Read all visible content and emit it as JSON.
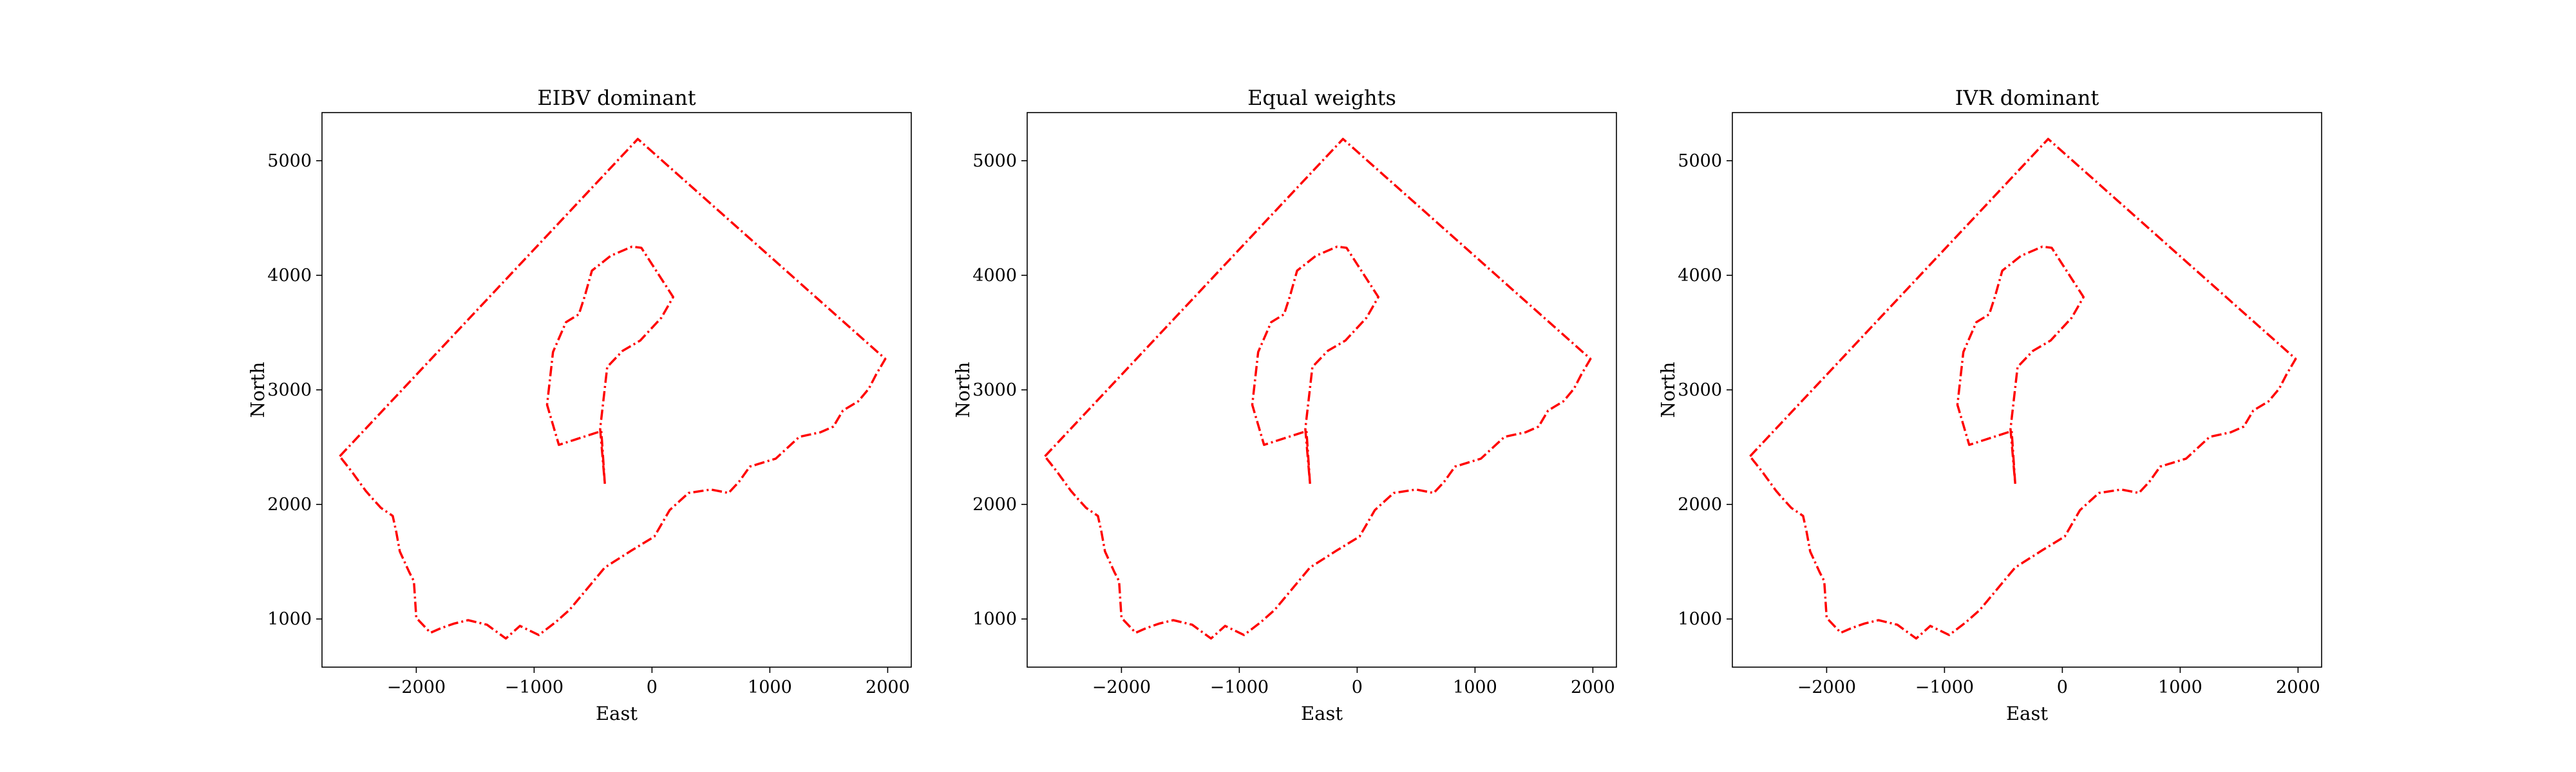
{
  "chart_data": [
    {
      "type": "line",
      "title": "EIBV dominant",
      "xlabel": "East",
      "ylabel": "North",
      "xlim": [
        -2800,
        2200
      ],
      "ylim": [
        580,
        5420
      ],
      "xticks": [
        -2000,
        -1000,
        0,
        1000,
        2000
      ],
      "xtick_labels": [
        "−2000",
        "−1000",
        "0",
        "1000",
        "2000"
      ],
      "yticks": [
        1000,
        2000,
        3000,
        4000,
        5000
      ],
      "ytick_labels": [
        "1000",
        "2000",
        "3000",
        "4000",
        "5000"
      ],
      "grid": false,
      "series_color": "#ff0000",
      "series": [
        {
          "x": [
            -2650,
            -120,
            1980,
            1900,
            1840,
            1750,
            1620,
            1540,
            1430,
            1250,
            1050,
            830,
            740,
            650,
            500,
            310,
            150,
            20,
            -170,
            -400,
            -700,
            -820,
            -960,
            -1120,
            -1240,
            -1400,
            -1560,
            -1680,
            -1790,
            -1880,
            -2000,
            -2020,
            -2060,
            -2140,
            -2170,
            -2200,
            -2300,
            -2380,
            -2430,
            -2550,
            -2650
          ],
          "y": [
            2420,
            5190,
            3270,
            3130,
            3010,
            2900,
            2820,
            2680,
            2630,
            2590,
            2400,
            2330,
            2200,
            2100,
            2130,
            2100,
            1950,
            1720,
            1600,
            1450,
            1080,
            970,
            860,
            940,
            830,
            950,
            990,
            960,
            920,
            880,
            1010,
            1330,
            1410,
            1590,
            1760,
            1900,
            1970,
            2060,
            2120,
            2290,
            2420
          ]
        },
        {
          "x": [
            -400,
            -430,
            -790,
            -890,
            -840,
            -730,
            -620,
            -570,
            -510,
            -350,
            -170,
            -90,
            180,
            80,
            -100,
            -250,
            -380,
            -440,
            -400
          ],
          "y": [
            2180,
            2640,
            2520,
            2870,
            3330,
            3590,
            3660,
            3820,
            4040,
            4170,
            4250,
            4240,
            3810,
            3630,
            3430,
            3340,
            3200,
            2660,
            2180
          ]
        }
      ]
    },
    {
      "type": "line",
      "title": "Equal weights",
      "xlabel": "East",
      "ylabel": "North",
      "xlim": [
        -2800,
        2200
      ],
      "ylim": [
        580,
        5420
      ],
      "xticks": [
        -2000,
        -1000,
        0,
        1000,
        2000
      ],
      "xtick_labels": [
        "−2000",
        "−1000",
        "0",
        "1000",
        "2000"
      ],
      "yticks": [
        1000,
        2000,
        3000,
        4000,
        5000
      ],
      "ytick_labels": [
        "1000",
        "2000",
        "3000",
        "4000",
        "5000"
      ],
      "grid": false,
      "series_color": "#ff0000",
      "series": [
        {
          "x": [
            -2650,
            -120,
            1980,
            1900,
            1840,
            1750,
            1620,
            1540,
            1430,
            1250,
            1050,
            830,
            740,
            650,
            500,
            310,
            150,
            20,
            -170,
            -400,
            -700,
            -820,
            -960,
            -1120,
            -1240,
            -1400,
            -1560,
            -1680,
            -1790,
            -1880,
            -2000,
            -2020,
            -2060,
            -2140,
            -2170,
            -2200,
            -2300,
            -2380,
            -2430,
            -2550,
            -2650
          ],
          "y": [
            2420,
            5190,
            3270,
            3130,
            3010,
            2900,
            2820,
            2680,
            2630,
            2590,
            2400,
            2330,
            2200,
            2100,
            2130,
            2100,
            1950,
            1720,
            1600,
            1450,
            1080,
            970,
            860,
            940,
            830,
            950,
            990,
            960,
            920,
            880,
            1010,
            1330,
            1410,
            1590,
            1760,
            1900,
            1970,
            2060,
            2120,
            2290,
            2420
          ]
        },
        {
          "x": [
            -400,
            -430,
            -790,
            -890,
            -840,
            -730,
            -620,
            -570,
            -510,
            -350,
            -170,
            -90,
            180,
            80,
            -100,
            -250,
            -380,
            -440,
            -400
          ],
          "y": [
            2180,
            2640,
            2520,
            2870,
            3330,
            3590,
            3660,
            3820,
            4040,
            4170,
            4250,
            4240,
            3810,
            3630,
            3430,
            3340,
            3200,
            2660,
            2180
          ]
        }
      ]
    },
    {
      "type": "line",
      "title": "IVR dominant",
      "xlabel": "East",
      "ylabel": "North",
      "xlim": [
        -2800,
        2200
      ],
      "ylim": [
        580,
        5420
      ],
      "xticks": [
        -2000,
        -1000,
        0,
        1000,
        2000
      ],
      "xtick_labels": [
        "−2000",
        "−1000",
        "0",
        "1000",
        "2000"
      ],
      "yticks": [
        1000,
        2000,
        3000,
        4000,
        5000
      ],
      "ytick_labels": [
        "1000",
        "2000",
        "3000",
        "4000",
        "5000"
      ],
      "grid": false,
      "series_color": "#ff0000",
      "series": [
        {
          "x": [
            -2650,
            -120,
            1980,
            1900,
            1840,
            1750,
            1620,
            1540,
            1430,
            1250,
            1050,
            830,
            740,
            650,
            500,
            310,
            150,
            20,
            -170,
            -400,
            -700,
            -820,
            -960,
            -1120,
            -1240,
            -1400,
            -1560,
            -1680,
            -1790,
            -1880,
            -2000,
            -2020,
            -2060,
            -2140,
            -2170,
            -2200,
            -2300,
            -2380,
            -2430,
            -2550,
            -2650
          ],
          "y": [
            2420,
            5190,
            3270,
            3130,
            3010,
            2900,
            2820,
            2680,
            2630,
            2590,
            2400,
            2330,
            2200,
            2100,
            2130,
            2100,
            1950,
            1720,
            1600,
            1450,
            1080,
            970,
            860,
            940,
            830,
            950,
            990,
            960,
            920,
            880,
            1010,
            1330,
            1410,
            1590,
            1760,
            1900,
            1970,
            2060,
            2120,
            2290,
            2420
          ]
        },
        {
          "x": [
            -400,
            -430,
            -790,
            -890,
            -840,
            -730,
            -620,
            -570,
            -510,
            -350,
            -170,
            -90,
            180,
            80,
            -100,
            -250,
            -380,
            -440,
            -400
          ],
          "y": [
            2180,
            2640,
            2520,
            2870,
            3330,
            3590,
            3660,
            3820,
            4040,
            4170,
            4250,
            4240,
            3810,
            3630,
            3430,
            3340,
            3200,
            2660,
            2180
          ]
        }
      ]
    }
  ]
}
